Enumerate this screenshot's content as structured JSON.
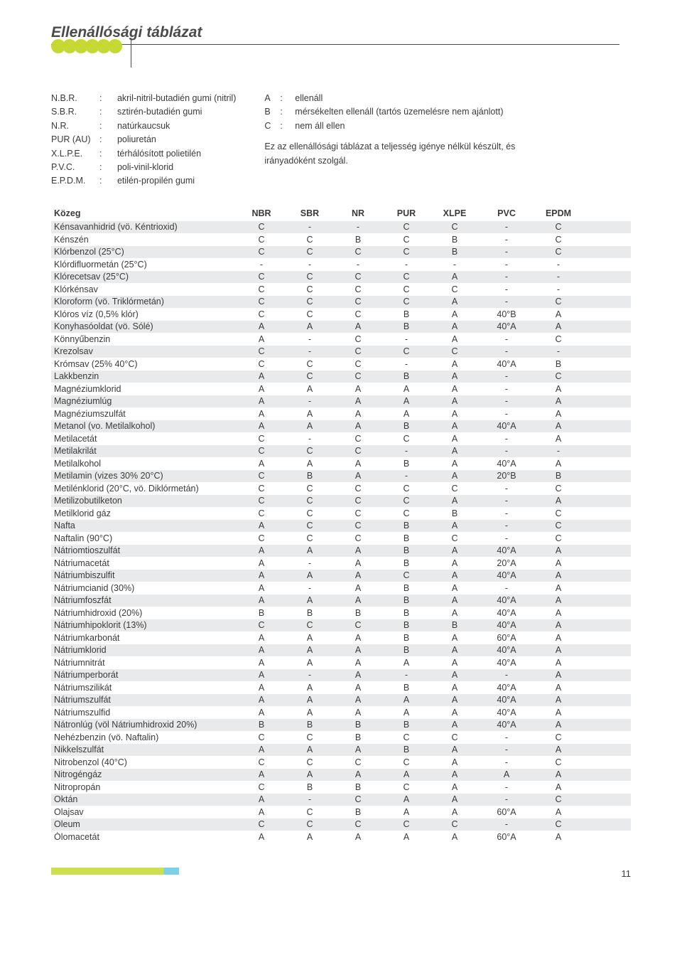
{
  "page_title": "Ellenállósági táblázat",
  "legend_left": [
    {
      "abbr": "N.B.R.",
      "desc": "akril-nitril-butadién gumi (nitril)"
    },
    {
      "abbr": "S.B.R.",
      "desc": "sztirén-butadién gumi"
    },
    {
      "abbr": "N.R.",
      "desc": "natúrkaucsuk"
    },
    {
      "abbr": "PUR (AU)",
      "desc": "poliuretán"
    },
    {
      "abbr": "X.L.P.E.",
      "desc": "térhálósított polietilén"
    },
    {
      "abbr": "P.V.C.",
      "desc": "poli-vinil-klorid"
    },
    {
      "abbr": "E.P.D.M.",
      "desc": "etilén-propilén gumi"
    }
  ],
  "legend_right": [
    {
      "abbr": "A",
      "desc": "ellenáll"
    },
    {
      "abbr": "B",
      "desc": "mérsékelten ellenáll (tartós üzemelésre nem ajánlott)"
    },
    {
      "abbr": "C",
      "desc": "nem áll ellen"
    }
  ],
  "legend_note": "Ez az ellenállósági táblázat a teljesség igénye nélkül készült, és irányadóként szolgál.",
  "columns": [
    "Közeg",
    "NBR",
    "SBR",
    "NR",
    "PUR",
    "XLPE",
    "PVC",
    "EPDM"
  ],
  "colors": {
    "alt_row": "#e9eaeb",
    "text": "#3a3a3a",
    "accent_green": "#c6d933",
    "accent_blue": "#7dd1e6"
  },
  "page_number": "11",
  "rows": [
    [
      "Kénsavanhidrid (vö. Kéntrioxid)",
      "C",
      "-",
      "-",
      "C",
      "C",
      "-",
      "C"
    ],
    [
      "Kénszén",
      "C",
      "C",
      "B",
      "C",
      "B",
      "-",
      "C"
    ],
    [
      "Klórbenzol (25°C)",
      "C",
      "C",
      "C",
      "C",
      "B",
      "-",
      "C"
    ],
    [
      "Klórdifluormetán (25°C)",
      "-",
      "-",
      "-",
      "-",
      "-",
      "-",
      "-"
    ],
    [
      "Klórecetsav (25°C)",
      "C",
      "C",
      "C",
      "C",
      "A",
      "-",
      "-"
    ],
    [
      "Klórkénsav",
      "C",
      "C",
      "C",
      "C",
      "C",
      "-",
      "-"
    ],
    [
      "Kloroform (vö. Triklórmetán)",
      "C",
      "C",
      "C",
      "C",
      "A",
      "-",
      "C"
    ],
    [
      "Klóros víz (0,5% klór)",
      "C",
      "C",
      "C",
      "B",
      "A",
      "40°B",
      "A"
    ],
    [
      "Konyhasóoldat (vö. Sólé)",
      "A",
      "A",
      "A",
      "B",
      "A",
      "40°A",
      "A"
    ],
    [
      "Könnyűbenzin",
      "A",
      "-",
      "C",
      "-",
      "A",
      "-",
      "C"
    ],
    [
      "Krezolsav",
      "C",
      "-",
      "C",
      "C",
      "C",
      "-",
      "-"
    ],
    [
      "Krómsav (25% 40°C)",
      "C",
      "C",
      "C",
      "-",
      "A",
      "40°A",
      "B"
    ],
    [
      "Lakkbenzin",
      "A",
      "C",
      "C",
      "B",
      "A",
      "-",
      "C"
    ],
    [
      "Magnéziumklorid",
      "A",
      "A",
      "A",
      "A",
      "A",
      "-",
      "A"
    ],
    [
      "Magnéziumlúg",
      "A",
      "-",
      "A",
      "A",
      "A",
      "-",
      "A"
    ],
    [
      "Magnéziumszulfát",
      "A",
      "A",
      "A",
      "A",
      "A",
      "-",
      "A"
    ],
    [
      "Metanol (vo. Metilalkohol)",
      "A",
      "A",
      "A",
      "B",
      "A",
      "40°A",
      "A"
    ],
    [
      "Metilacetát",
      "C",
      "-",
      "C",
      "C",
      "A",
      "-",
      "A"
    ],
    [
      "Metilakrilát",
      "C",
      "C",
      "C",
      "-",
      "A",
      "-",
      "-"
    ],
    [
      "Metilalkohol",
      "A",
      "A",
      "A",
      "B",
      "A",
      "40°A",
      "A"
    ],
    [
      "Metilamin (vizes 30% 20°C)",
      "C",
      "B",
      "A",
      "-",
      "A",
      "20°B",
      "B"
    ],
    [
      "Metilénklorid (20°C, vö. Diklórmetán)",
      "C",
      "C",
      "C",
      "C",
      "C",
      "-",
      "C"
    ],
    [
      "Metilizobutilketon",
      "C",
      "C",
      "C",
      "C",
      "A",
      "-",
      "A"
    ],
    [
      "Metilklorid gáz",
      "C",
      "C",
      "C",
      "C",
      "B",
      "-",
      "C"
    ],
    [
      "Nafta",
      "A",
      "C",
      "C",
      "B",
      "A",
      "-",
      "C"
    ],
    [
      "Naftalin (90°C)",
      "C",
      "C",
      "C",
      "B",
      "C",
      "-",
      "C"
    ],
    [
      "Nátriomtioszulfát",
      "A",
      "A",
      "A",
      "B",
      "A",
      "40°A",
      "A"
    ],
    [
      "Nátriumacetát",
      "A",
      "-",
      "A",
      "B",
      "A",
      "20°A",
      "A"
    ],
    [
      "Nátriumbiszulfit",
      "A",
      "A",
      "A",
      "C",
      "A",
      "40°A",
      "A"
    ],
    [
      "Nátriumcianid (30%)",
      "A",
      "-",
      "A",
      "B",
      "A",
      "-",
      "A"
    ],
    [
      "Nátriumfoszfát",
      "A",
      "A",
      "A",
      "B",
      "A",
      "40°A",
      "A"
    ],
    [
      "Nátriumhidroxid (20%)",
      "B",
      "B",
      "B",
      "B",
      "A",
      "40°A",
      "A"
    ],
    [
      "Nátriumhipoklorit (13%)",
      "C",
      "C",
      "C",
      "B",
      "B",
      "40°A",
      "A"
    ],
    [
      "Nátriumkarbonát",
      "A",
      "A",
      "A",
      "B",
      "A",
      "60°A",
      "A"
    ],
    [
      "Nátriumklorid",
      "A",
      "A",
      "A",
      "B",
      "A",
      "40°A",
      "A"
    ],
    [
      "Nátriumnitrát",
      "A",
      "A",
      "A",
      "A",
      "A",
      "40°A",
      "A"
    ],
    [
      "Nátriumperborát",
      "A",
      "-",
      "A",
      "-",
      "A",
      "-",
      "A"
    ],
    [
      "Nátriumszilikát",
      "A",
      "A",
      "A",
      "B",
      "A",
      "40°A",
      "A"
    ],
    [
      "Nátriumszulfát",
      "A",
      "A",
      "A",
      "A",
      "A",
      "40°A",
      "A"
    ],
    [
      "Nátriumszulfid",
      "A",
      "A",
      "A",
      "A",
      "A",
      "40°A",
      "A"
    ],
    [
      "Nátronlúg (völ Nátriumhidroxid 20%)",
      "B",
      "B",
      "B",
      "B",
      "A",
      "40°A",
      "A"
    ],
    [
      "Nehézbenzin (vö. Naftalin)",
      "C",
      "C",
      "B",
      "C",
      "C",
      "-",
      "C"
    ],
    [
      "Nikkelszulfát",
      "A",
      "A",
      "A",
      "B",
      "A",
      "-",
      "A"
    ],
    [
      "Nitrobenzol (40°C)",
      "C",
      "C",
      "C",
      "C",
      "A",
      "-",
      "C"
    ],
    [
      "Nitrogéngáz",
      "A",
      "A",
      "A",
      "A",
      "A",
      "A",
      "A"
    ],
    [
      "Nitropropán",
      "C",
      "B",
      "B",
      "C",
      "A",
      "-",
      "A"
    ],
    [
      "Oktán",
      "A",
      "-",
      "C",
      "A",
      "A",
      "-",
      "C"
    ],
    [
      "Olajsav",
      "A",
      "C",
      "B",
      "A",
      "A",
      "60°A",
      "A"
    ],
    [
      "Oleum",
      "C",
      "C",
      "C",
      "C",
      "C",
      "-",
      "C"
    ],
    [
      "Ólomacetát",
      "A",
      "A",
      "A",
      "A",
      "A",
      "60°A",
      "A"
    ]
  ]
}
